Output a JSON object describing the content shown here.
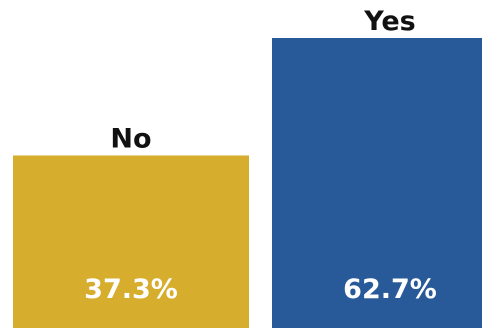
{
  "chart_data": {
    "type": "bar",
    "categories": [
      "No",
      "Yes"
    ],
    "values": [
      37.3,
      62.7
    ],
    "value_labels": [
      "37.3%",
      "62.7%"
    ],
    "ylim": [
      0,
      65
    ],
    "grid": false,
    "legend": "none",
    "colors": [
      "#D6AD2C",
      "#285A9A"
    ]
  }
}
